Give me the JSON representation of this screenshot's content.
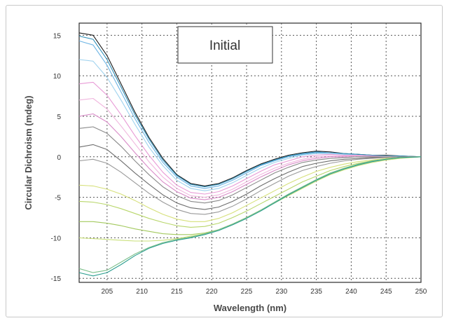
{
  "chart_data": {
    "type": "line",
    "title": "",
    "xlabel": "Wavelength (nm)",
    "ylabel": "Circular Dichroism (mdeg)",
    "annotation": "Initial",
    "xlim": [
      201,
      250
    ],
    "ylim": [
      -15.5,
      16.5
    ],
    "x_ticks": [
      205,
      210,
      215,
      220,
      225,
      230,
      235,
      240,
      245,
      250
    ],
    "y_ticks": [
      15,
      10,
      5,
      0,
      -5,
      -10,
      -15
    ],
    "x_tick_labels": [
      "205",
      "210",
      "215",
      "220",
      "225",
      "230",
      "235",
      "240",
      "245",
      "250"
    ],
    "y_tick_labels": [
      "15",
      "10",
      "5",
      "0",
      "-5",
      "-10",
      "-15"
    ],
    "grid": true,
    "grid_style": "dotted",
    "x": [
      201,
      203,
      205,
      207,
      209,
      211,
      213,
      215,
      217,
      219,
      221,
      223,
      225,
      227,
      229,
      231,
      233,
      235,
      237,
      239,
      241,
      243,
      245,
      247,
      250
    ],
    "series": [
      {
        "color": "#1a1a1a",
        "values": [
          15.3,
          15.0,
          12.5,
          9.0,
          5.5,
          2.4,
          -0.2,
          -2.2,
          -3.3,
          -3.6,
          -3.3,
          -2.6,
          -1.7,
          -0.9,
          -0.3,
          0.2,
          0.5,
          0.7,
          0.6,
          0.4,
          0.3,
          0.2,
          0.2,
          0.1,
          0.0
        ]
      },
      {
        "color": "#2f8fb8",
        "values": [
          14.9,
          14.5,
          12.0,
          8.6,
          5.2,
          2.2,
          -0.4,
          -2.3,
          -3.4,
          -3.7,
          -3.4,
          -2.7,
          -1.8,
          -1.0,
          -0.4,
          0.1,
          0.4,
          0.6,
          0.5,
          0.4,
          0.3,
          0.2,
          0.1,
          0.1,
          0.0
        ]
      },
      {
        "color": "#6cb4e4",
        "values": [
          14.3,
          13.8,
          11.3,
          8.0,
          4.7,
          1.8,
          -0.7,
          -2.5,
          -3.6,
          -3.9,
          -3.6,
          -2.9,
          -2.0,
          -1.1,
          -0.5,
          0.0,
          0.3,
          0.5,
          0.5,
          0.3,
          0.2,
          0.1,
          0.1,
          0.0,
          0.0
        ]
      },
      {
        "color": "#9fd2ee",
        "values": [
          12.0,
          11.8,
          9.8,
          7.0,
          4.0,
          1.2,
          -1.1,
          -2.9,
          -3.9,
          -4.2,
          -3.9,
          -3.2,
          -2.3,
          -1.4,
          -0.7,
          -0.2,
          0.2,
          0.4,
          0.4,
          0.3,
          0.2,
          0.1,
          0.1,
          0.0,
          0.0
        ]
      },
      {
        "color": "#e89ad6",
        "values": [
          9.0,
          9.2,
          7.6,
          5.2,
          2.6,
          0.2,
          -1.9,
          -3.5,
          -4.4,
          -4.6,
          -4.3,
          -3.6,
          -2.7,
          -1.8,
          -1.0,
          -0.5,
          0.0,
          0.2,
          0.3,
          0.2,
          0.2,
          0.1,
          0.0,
          0.0,
          0.0
        ]
      },
      {
        "color": "#f0b6de",
        "values": [
          7.0,
          7.2,
          5.9,
          3.8,
          1.6,
          -0.6,
          -2.5,
          -3.9,
          -4.8,
          -5.0,
          -4.7,
          -4.0,
          -3.1,
          -2.2,
          -1.4,
          -0.8,
          -0.3,
          0.0,
          0.1,
          0.1,
          0.1,
          0.0,
          0.0,
          0.0,
          0.0
        ]
      },
      {
        "color": "#d98bc8",
        "values": [
          5.0,
          5.3,
          4.3,
          2.5,
          0.5,
          -1.4,
          -3.1,
          -4.3,
          -5.1,
          -5.3,
          -5.0,
          -4.3,
          -3.4,
          -2.5,
          -1.7,
          -1.0,
          -0.5,
          -0.2,
          0.0,
          0.0,
          0.0,
          0.0,
          0.0,
          0.0,
          0.0
        ]
      },
      {
        "color": "#8a8a8a",
        "values": [
          3.5,
          3.7,
          2.9,
          1.3,
          -0.5,
          -2.2,
          -3.7,
          -4.8,
          -5.5,
          -5.7,
          -5.4,
          -4.7,
          -3.8,
          -2.9,
          -2.0,
          -1.3,
          -0.7,
          -0.4,
          -0.2,
          -0.1,
          0.0,
          0.0,
          0.0,
          0.0,
          0.0
        ]
      },
      {
        "color": "#6e6e6e",
        "values": [
          1.2,
          1.5,
          0.9,
          -0.5,
          -2.0,
          -3.4,
          -4.7,
          -5.7,
          -6.3,
          -6.5,
          -6.2,
          -5.5,
          -4.6,
          -3.6,
          -2.7,
          -1.9,
          -1.2,
          -0.8,
          -0.5,
          -0.3,
          -0.2,
          -0.1,
          -0.1,
          0.0,
          0.0
        ]
      },
      {
        "color": "#9a9a9a",
        "values": [
          -0.5,
          -0.3,
          -0.8,
          -1.9,
          -3.2,
          -4.5,
          -5.6,
          -6.5,
          -7.0,
          -7.1,
          -6.8,
          -6.1,
          -5.2,
          -4.2,
          -3.3,
          -2.4,
          -1.7,
          -1.2,
          -0.8,
          -0.5,
          -0.3,
          -0.2,
          -0.1,
          0.0,
          0.0
        ]
      },
      {
        "color": "#d6e07a",
        "values": [
          -3.5,
          -3.6,
          -4.0,
          -4.6,
          -5.4,
          -6.3,
          -7.1,
          -7.7,
          -8.0,
          -8.0,
          -7.6,
          -6.9,
          -6.0,
          -5.1,
          -4.2,
          -3.3,
          -2.5,
          -1.8,
          -1.3,
          -0.9,
          -0.6,
          -0.4,
          -0.2,
          -0.1,
          0.0
        ]
      },
      {
        "color": "#b8d66a",
        "values": [
          -5.5,
          -5.6,
          -5.9,
          -6.4,
          -7.0,
          -7.6,
          -8.1,
          -8.5,
          -8.7,
          -8.6,
          -8.2,
          -7.5,
          -6.7,
          -5.8,
          -4.9,
          -4.0,
          -3.1,
          -2.4,
          -1.7,
          -1.2,
          -0.8,
          -0.5,
          -0.3,
          -0.1,
          0.0
        ]
      },
      {
        "color": "#a3c95e",
        "values": [
          -8.0,
          -8.0,
          -8.2,
          -8.5,
          -8.9,
          -9.2,
          -9.5,
          -9.6,
          -9.6,
          -9.4,
          -9.0,
          -8.3,
          -7.5,
          -6.6,
          -5.7,
          -4.7,
          -3.8,
          -2.9,
          -2.1,
          -1.5,
          -1.0,
          -0.6,
          -0.3,
          -0.1,
          0.0
        ]
      },
      {
        "color": "#c9e07a",
        "values": [
          -10.0,
          -10.1,
          -10.2,
          -10.3,
          -10.4,
          -10.4,
          -10.3,
          -10.1,
          -9.8,
          -9.5,
          -9.0,
          -8.3,
          -7.5,
          -6.6,
          -5.7,
          -4.8,
          -3.9,
          -3.0,
          -2.2,
          -1.6,
          -1.1,
          -0.7,
          -0.4,
          -0.2,
          0.0
        ]
      },
      {
        "color": "#7bbf8a",
        "values": [
          -13.8,
          -14.3,
          -14.0,
          -13.0,
          -12.0,
          -11.2,
          -10.6,
          -10.2,
          -9.9,
          -9.5,
          -9.0,
          -8.3,
          -7.5,
          -6.6,
          -5.6,
          -4.6,
          -3.7,
          -2.8,
          -2.0,
          -1.4,
          -0.9,
          -0.5,
          -0.3,
          -0.1,
          0.0
        ]
      },
      {
        "color": "#2a9d8f",
        "values": [
          -14.3,
          -14.7,
          -14.3,
          -13.3,
          -12.2,
          -11.3,
          -10.7,
          -10.3,
          -10.0,
          -9.6,
          -9.1,
          -8.4,
          -7.6,
          -6.7,
          -5.7,
          -4.7,
          -3.8,
          -2.9,
          -2.1,
          -1.5,
          -1.0,
          -0.6,
          -0.3,
          -0.1,
          0.0
        ]
      }
    ]
  }
}
